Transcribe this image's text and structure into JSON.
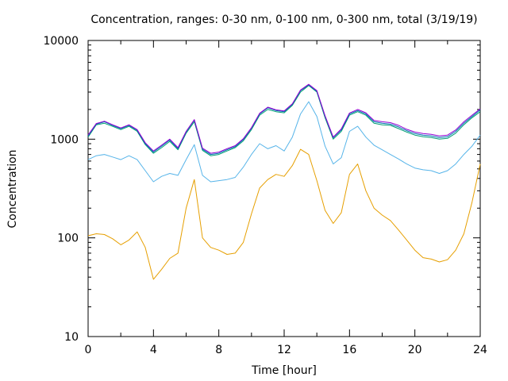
{
  "chart_data": {
    "type": "line",
    "title": "Concentration, ranges: 0-30 nm, 0-100 nm, 0-300 nm, total (3/19/19)",
    "xlabel": "Time [hour]",
    "ylabel": "Concentration",
    "xlim": [
      0,
      24
    ],
    "ylim": [
      10,
      10000
    ],
    "yscale": "log",
    "grid": false,
    "legend": "none",
    "x_ticks": [
      "0",
      "4",
      "8",
      "12",
      "16",
      "20",
      "24"
    ],
    "y_ticks": [
      "10",
      "100",
      "1000",
      "10000"
    ],
    "x": [
      0,
      0.5,
      1,
      1.5,
      2,
      2.5,
      3,
      3.5,
      4,
      4.5,
      5,
      5.5,
      6,
      6.5,
      7,
      7.5,
      8,
      8.5,
      9,
      9.5,
      10,
      10.5,
      11,
      11.5,
      12,
      12.5,
      13,
      13.5,
      14,
      14.5,
      15,
      15.5,
      16,
      16.5,
      17,
      17.5,
      18,
      18.5,
      19,
      19.5,
      20,
      20.5,
      21,
      21.5,
      22,
      22.5,
      23,
      23.5,
      24
    ],
    "series": [
      {
        "color": "#e69f00",
        "values": [
          105,
          110,
          108,
          98,
          85,
          95,
          115,
          80,
          38,
          48,
          62,
          70,
          200,
          390,
          100,
          80,
          75,
          68,
          70,
          90,
          175,
          320,
          390,
          440,
          420,
          540,
          790,
          700,
          380,
          190,
          140,
          180,
          440,
          560,
          300,
          200,
          170,
          150,
          120,
          95,
          75,
          63,
          61,
          57,
          60,
          75,
          110,
          230,
          560
        ]
      },
      {
        "color": "#56b4e9",
        "values": [
          620,
          680,
          700,
          660,
          620,
          680,
          620,
          480,
          370,
          420,
          450,
          430,
          620,
          880,
          430,
          370,
          380,
          390,
          410,
          520,
          700,
          900,
          800,
          860,
          760,
          1050,
          1800,
          2400,
          1700,
          850,
          560,
          650,
          1200,
          1350,
          1050,
          870,
          780,
          700,
          630,
          560,
          510,
          490,
          480,
          450,
          480,
          560,
          700,
          850,
          1100
        ]
      },
      {
        "color": "#009e73",
        "values": [
          1050,
          1400,
          1450,
          1350,
          1250,
          1350,
          1200,
          880,
          720,
          820,
          950,
          780,
          1150,
          1500,
          770,
          680,
          700,
          760,
          820,
          960,
          1250,
          1750,
          2000,
          1900,
          1850,
          2200,
          3000,
          3500,
          3000,
          1650,
          1000,
          1200,
          1750,
          1900,
          1750,
          1450,
          1400,
          1380,
          1280,
          1180,
          1100,
          1060,
          1040,
          1000,
          1020,
          1150,
          1400,
          1650,
          1900
        ]
      },
      {
        "color": "#0072b2",
        "values": [
          1080,
          1420,
          1500,
          1380,
          1280,
          1380,
          1230,
          900,
          740,
          850,
          980,
          800,
          1180,
          1560,
          790,
          700,
          720,
          780,
          840,
          990,
          1290,
          1800,
          2080,
          1950,
          1900,
          2250,
          3100,
          3560,
          3050,
          1700,
          1030,
          1240,
          1800,
          1950,
          1800,
          1500,
          1450,
          1420,
          1330,
          1220,
          1140,
          1100,
          1080,
          1040,
          1060,
          1200,
          1450,
          1700,
          1980
        ]
      },
      {
        "color": "#9400d3",
        "values": [
          1100,
          1440,
          1520,
          1400,
          1300,
          1400,
          1250,
          920,
          760,
          870,
          1000,
          820,
          1200,
          1580,
          810,
          720,
          740,
          800,
          860,
          1010,
          1310,
          1830,
          2110,
          1980,
          1930,
          2280,
          3150,
          3600,
          3100,
          1730,
          1050,
          1270,
          1840,
          2000,
          1850,
          1550,
          1500,
          1470,
          1380,
          1260,
          1180,
          1140,
          1120,
          1080,
          1100,
          1240,
          1500,
          1750,
          2030
        ]
      }
    ]
  }
}
